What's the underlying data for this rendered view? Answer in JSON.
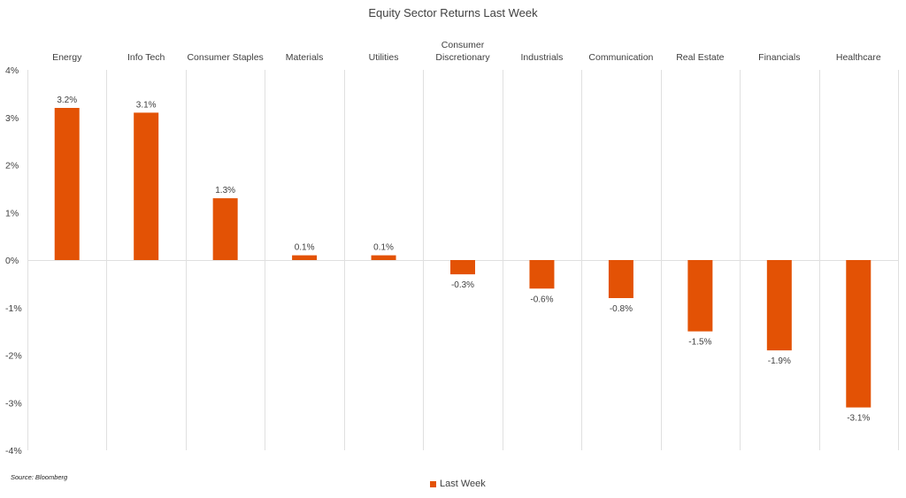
{
  "chart_data": {
    "type": "bar",
    "title": "Equity Sector Returns Last Week",
    "categories": [
      [
        "Energy"
      ],
      [
        "Info Tech"
      ],
      [
        "Consumer Staples"
      ],
      [
        "Materials"
      ],
      [
        "Utilities"
      ],
      [
        "Consumer",
        "Discretionary"
      ],
      [
        "Industrials"
      ],
      [
        "Communication"
      ],
      [
        "Real Estate"
      ],
      [
        "Financials"
      ],
      [
        "Healthcare"
      ]
    ],
    "series": [
      {
        "name": "Last Week",
        "values": [
          3.2,
          3.1,
          1.3,
          0.1,
          0.1,
          -0.3,
          -0.6,
          -0.8,
          -1.5,
          -1.9,
          -3.1
        ],
        "data_labels": [
          "3.2%",
          "3.1%",
          "1.3%",
          "0.1%",
          "0.1%",
          "-0.3%",
          "-0.6%",
          "-0.8%",
          "-1.5%",
          "-1.9%",
          "-3.1%"
        ],
        "color": "#E35205"
      }
    ],
    "ylim": [
      -4,
      4
    ],
    "yticks": [
      4,
      3,
      2,
      1,
      0,
      -1,
      -2,
      -3,
      -4
    ],
    "ytick_labels": [
      "4%",
      "3%",
      "2%",
      "1%",
      "0%",
      "-1%",
      "-2%",
      "-3%",
      "-4%"
    ],
    "category_labels_position": "top",
    "legend_position": "bottom-center",
    "vertical_gridlines": true,
    "gridline_color": "#E0E0E0"
  },
  "source": "Source: Bloomberg"
}
